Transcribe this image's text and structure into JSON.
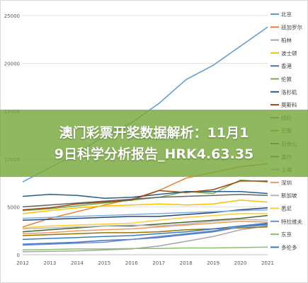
{
  "chart_data": {
    "type": "line",
    "x": [
      "2012",
      "2013",
      "2014",
      "2015",
      "2016",
      "2017",
      "2018",
      "2019",
      "2020",
      "2021"
    ],
    "ylim": [
      0,
      25000
    ],
    "yticks": [
      "0",
      "5000",
      "10000",
      "15000",
      "20000",
      "25000"
    ],
    "grid": true,
    "legend_position": "right",
    "series": [
      {
        "name": "北京",
        "color": "#5b9bd5",
        "values": [
          7600,
          9100,
          10600,
          12400,
          13800,
          15800,
          18300,
          19800,
          21800,
          23800
        ]
      },
      {
        "name": "班加罗尔",
        "color": "#ed7d31",
        "values": [
          2900,
          3800,
          4500,
          5200,
          5800,
          6700,
          8000,
          8600,
          9200,
          9500
        ]
      },
      {
        "name": "柏林",
        "color": "#a5a5a5",
        "values": [
          300,
          350,
          400,
          500,
          600,
          900,
          1400,
          1900,
          2600,
          3000
        ]
      },
      {
        "name": "波士顿",
        "color": "#ffc000",
        "values": [
          4300,
          4600,
          4900,
          5100,
          5200,
          5300,
          5200,
          5300,
          5700,
          5500
        ]
      },
      {
        "name": "香港",
        "color": "#4472c4",
        "values": [
          1100,
          1200,
          1300,
          1500,
          1600,
          1800,
          2100,
          2400,
          2900,
          3200
        ]
      },
      {
        "name": "伦敦",
        "color": "#70ad47",
        "values": [
          4600,
          4800,
          5100,
          5400,
          5700,
          6000,
          6600,
          6400,
          7800,
          7600
        ]
      },
      {
        "name": "洛杉矶",
        "color": "#255e91",
        "values": [
          6100,
          6300,
          6200,
          5900,
          6000,
          6300,
          6600,
          6600,
          6600,
          6400
        ]
      },
      {
        "name": "莫斯科",
        "color": "#9e480e",
        "values": [
          4700,
          4900,
          5300,
          5500,
          5700,
          6700,
          6500,
          6800,
          7700,
          7700
        ]
      },
      {
        "name": "纽约",
        "color": "#636363",
        "values": [
          5000,
          5200,
          5400,
          5600,
          5800,
          6000,
          6100,
          6200,
          6300,
          6200
        ]
      },
      {
        "name": "巴黎",
        "color": "#997300",
        "values": [
          2000,
          2100,
          2200,
          2300,
          2300,
          2400,
          2600,
          2700,
          2800,
          2900
        ]
      },
      {
        "name": "旧金山",
        "color": "#264478",
        "values": [
          3600,
          3700,
          3800,
          3900,
          4000,
          4000,
          4200,
          4400,
          4700,
          4900
        ]
      },
      {
        "name": "首尔",
        "color": "#43682b",
        "values": [
          2400,
          2600,
          2800,
          3000,
          3000,
          3200,
          3400,
          3600,
          3800,
          4100
        ]
      },
      {
        "name": "上海",
        "color": "#7cafdd",
        "values": [
          3800,
          3900,
          4000,
          4100,
          4200,
          4300,
          4400,
          4500,
          4600,
          4700
        ]
      },
      {
        "name": "深圳",
        "color": "#f1975a",
        "values": [
          2200,
          2300,
          2500,
          2600,
          2700,
          2900,
          3100,
          3300,
          3500,
          3400
        ]
      },
      {
        "name": "新加坡",
        "color": "#b7b7b7",
        "values": [
          2700,
          2800,
          2900,
          3000,
          3100,
          3000,
          3200,
          3500,
          3700,
          3600
        ]
      },
      {
        "name": "悉尼",
        "color": "#ffcd33",
        "values": [
          2800,
          3000,
          3100,
          3200,
          3300,
          3600,
          3900,
          4100,
          4300,
          4300
        ]
      },
      {
        "name": "特拉维夫",
        "color": "#698ed0",
        "values": [
          1000,
          1100,
          1200,
          1300,
          1600,
          1900,
          2200,
          2500,
          2900,
          3100
        ]
      },
      {
        "name": "东京",
        "color": "#8cc168",
        "values": [
          500,
          550,
          600,
          600,
          650,
          650,
          700,
          700,
          750,
          800
        ]
      },
      {
        "name": "多伦多",
        "color": "#327dc2",
        "values": [
          1600,
          1700,
          1800,
          1900,
          2000,
          2200,
          2400,
          2700,
          3000,
          3300
        ]
      }
    ],
    "legend_visible": [
      "北京",
      "班加罗尔",
      "柏林",
      "波士顿",
      "香港",
      "伦敦",
      "洛杉矶",
      "莫斯科",
      "纽约",
      "巴黎",
      "旧金山",
      "首尔",
      "上海",
      "深圳",
      "新加坡",
      "悉尼",
      "特拉维夫",
      "东京",
      "多伦多"
    ]
  },
  "banner": {
    "line1": "澳门彩票开奖数据解析：11月1",
    "line2": "9日科学分析报告_HRK4.63.35"
  }
}
